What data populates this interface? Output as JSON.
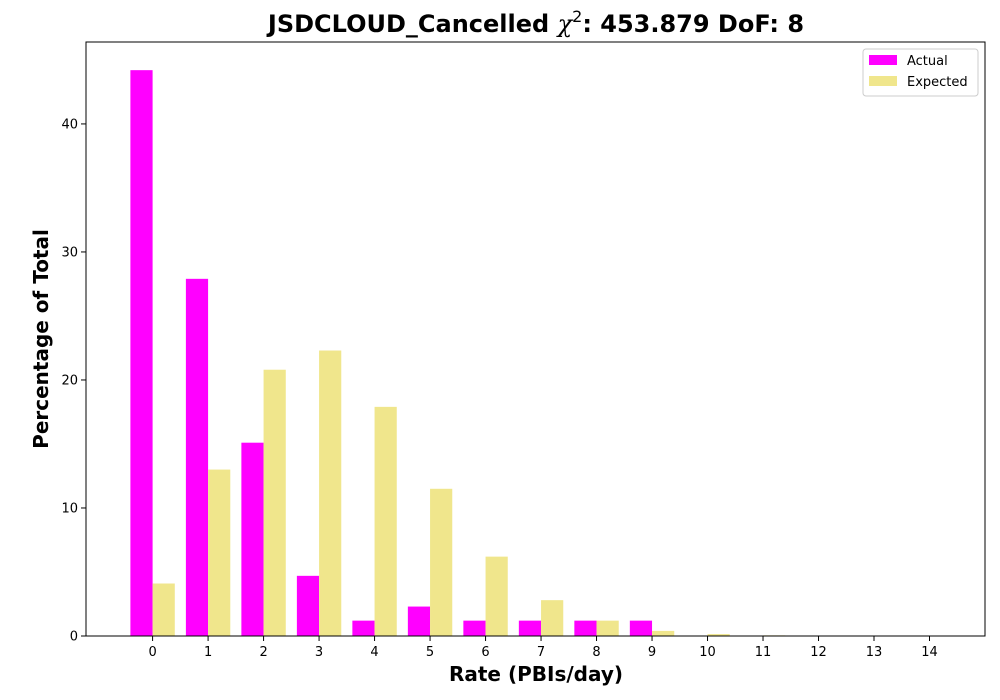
{
  "chart_data": {
    "type": "bar",
    "title": {
      "prefix": "JSDCLOUD_Cancelled ",
      "symbol": "χ",
      "superscript": "2",
      "suffix": ": 453.879 DoF: 8"
    },
    "xlabel": "Rate (PBIs/day)",
    "ylabel": "Percentage of Total",
    "categories": [
      "0",
      "1",
      "2",
      "3",
      "4",
      "5",
      "6",
      "7",
      "8",
      "9",
      "10",
      "11",
      "12",
      "13",
      "14"
    ],
    "series": [
      {
        "name": "Actual",
        "color": "#ff00ff",
        "values": [
          44.2,
          27.9,
          15.1,
          4.7,
          1.2,
          2.3,
          1.2,
          1.2,
          1.2,
          1.2,
          0,
          0,
          0,
          0,
          0
        ]
      },
      {
        "name": "Expected",
        "color": "#f0e68c",
        "values": [
          4.1,
          13.0,
          20.8,
          22.3,
          17.9,
          11.5,
          6.2,
          2.8,
          1.2,
          0.4,
          0.15,
          0.05,
          0.01,
          0,
          0
        ]
      }
    ],
    "ylim": [
      0,
      46.4
    ],
    "yticks": [
      0,
      10,
      20,
      30,
      40
    ],
    "grid": false,
    "legend_position": "top-right"
  }
}
